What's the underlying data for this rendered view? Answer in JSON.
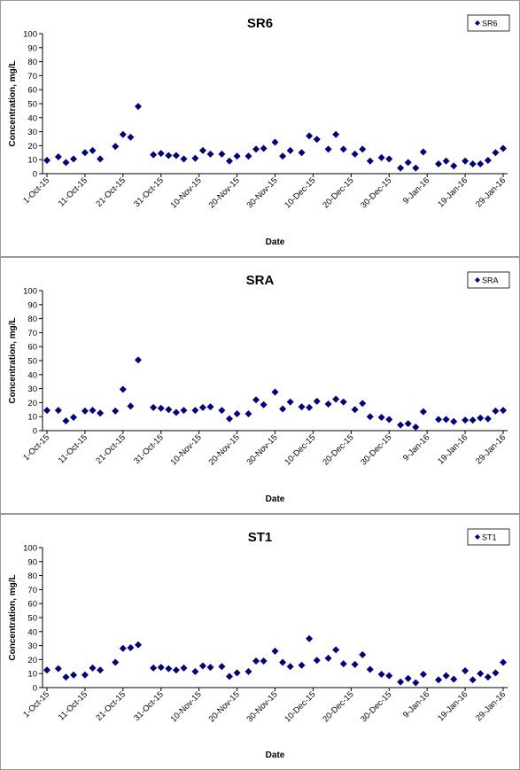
{
  "chart_data": [
    {
      "type": "scatter",
      "title": "SR6",
      "xlabel": "Date",
      "ylabel": "Concentration, mg/L",
      "ylim": [
        0,
        100
      ],
      "yticks": [
        0,
        10,
        20,
        30,
        40,
        50,
        60,
        70,
        80,
        90,
        100
      ],
      "xlim": [
        "2015-10-01",
        "2016-01-29"
      ],
      "xticks": [
        "1-Oct-15",
        "11-Oct-15",
        "21-Oct-15",
        "31-Oct-15",
        "10-Nov-15",
        "20-Nov-15",
        "30-Nov-15",
        "10-Dec-15",
        "20-Dec-15",
        "30-Dec-15",
        "9-Jan-16",
        "19-Jan-16",
        "29-Jan-16"
      ],
      "grid": false,
      "legend": "top-right",
      "marker_color": "#000080",
      "series": [
        {
          "name": "SR6",
          "points": [
            [
              "2015-10-01",
              9.5
            ],
            [
              "2015-10-04",
              12
            ],
            [
              "2015-10-06",
              8
            ],
            [
              "2015-10-08",
              10.5
            ],
            [
              "2015-10-11",
              15
            ],
            [
              "2015-10-13",
              16.5
            ],
            [
              "2015-10-15",
              10.5
            ],
            [
              "2015-10-19",
              19.5
            ],
            [
              "2015-10-21",
              28
            ],
            [
              "2015-10-23",
              26
            ],
            [
              "2015-10-25",
              48
            ],
            [
              "2015-10-29",
              13.5
            ],
            [
              "2015-10-31",
              14.5
            ],
            [
              "2015-11-02",
              13
            ],
            [
              "2015-11-04",
              13
            ],
            [
              "2015-11-06",
              10.5
            ],
            [
              "2015-11-09",
              11
            ],
            [
              "2015-11-11",
              16.5
            ],
            [
              "2015-11-13",
              14
            ],
            [
              "2015-11-16",
              14
            ],
            [
              "2015-11-18",
              9
            ],
            [
              "2015-11-20",
              12.5
            ],
            [
              "2015-11-23",
              12.5
            ],
            [
              "2015-11-25",
              17.5
            ],
            [
              "2015-11-27",
              18
            ],
            [
              "2015-11-30",
              22.5
            ],
            [
              "2015-12-02",
              12.5
            ],
            [
              "2015-12-04",
              16.5
            ],
            [
              "2015-12-07",
              15
            ],
            [
              "2015-12-09",
              27
            ],
            [
              "2015-12-11",
              24.5
            ],
            [
              "2015-12-14",
              17.5
            ],
            [
              "2015-12-16",
              28
            ],
            [
              "2015-12-18",
              17.5
            ],
            [
              "2015-12-21",
              14
            ],
            [
              "2015-12-23",
              17.5
            ],
            [
              "2015-12-25",
              9
            ],
            [
              "2015-12-28",
              11.5
            ],
            [
              "2015-12-30",
              10.5
            ],
            [
              "2016-01-02",
              4
            ],
            [
              "2016-01-04",
              8
            ],
            [
              "2016-01-06",
              4
            ],
            [
              "2016-01-08",
              15.5
            ],
            [
              "2016-01-12",
              7
            ],
            [
              "2016-01-14",
              9
            ],
            [
              "2016-01-16",
              5.5
            ],
            [
              "2016-01-19",
              9
            ],
            [
              "2016-01-21",
              7
            ],
            [
              "2016-01-23",
              7
            ],
            [
              "2016-01-25",
              9.5
            ],
            [
              "2016-01-27",
              15
            ],
            [
              "2016-01-29",
              18
            ]
          ]
        }
      ]
    },
    {
      "type": "scatter",
      "title": "SRA",
      "xlabel": "Date",
      "ylabel": "Concentration, mg/L",
      "ylim": [
        0,
        100
      ],
      "yticks": [
        0,
        10,
        20,
        30,
        40,
        50,
        60,
        70,
        80,
        90,
        100
      ],
      "xlim": [
        "2015-10-01",
        "2016-01-29"
      ],
      "xticks": [
        "1-Oct-15",
        "11-Oct-15",
        "21-Oct-15",
        "31-Oct-15",
        "10-Nov-15",
        "20-Nov-15",
        "30-Nov-15",
        "10-Dec-15",
        "20-Dec-15",
        "30-Dec-15",
        "9-Jan-16",
        "19-Jan-16",
        "29-Jan-16"
      ],
      "grid": false,
      "legend": "top-right",
      "marker_color": "#000080",
      "series": [
        {
          "name": "SRA",
          "points": [
            [
              "2015-10-01",
              14.5
            ],
            [
              "2015-10-04",
              14.5
            ],
            [
              "2015-10-06",
              7
            ],
            [
              "2015-10-08",
              9.5
            ],
            [
              "2015-10-11",
              14
            ],
            [
              "2015-10-13",
              14.5
            ],
            [
              "2015-10-15",
              12.5
            ],
            [
              "2015-10-19",
              14
            ],
            [
              "2015-10-21",
              29.5
            ],
            [
              "2015-10-23",
              17.5
            ],
            [
              "2015-10-25",
              50.5
            ],
            [
              "2015-10-29",
              16.5
            ],
            [
              "2015-10-31",
              16
            ],
            [
              "2015-11-02",
              15
            ],
            [
              "2015-11-04",
              13
            ],
            [
              "2015-11-06",
              14.5
            ],
            [
              "2015-11-09",
              14.5
            ],
            [
              "2015-11-11",
              16.5
            ],
            [
              "2015-11-13",
              17
            ],
            [
              "2015-11-16",
              14.5
            ],
            [
              "2015-11-18",
              8.5
            ],
            [
              "2015-11-20",
              12
            ],
            [
              "2015-11-23",
              12
            ],
            [
              "2015-11-25",
              22
            ],
            [
              "2015-11-27",
              18.5
            ],
            [
              "2015-11-30",
              27.5
            ],
            [
              "2015-12-02",
              15.5
            ],
            [
              "2015-12-04",
              20.5
            ],
            [
              "2015-12-07",
              17
            ],
            [
              "2015-12-09",
              16.5
            ],
            [
              "2015-12-11",
              21
            ],
            [
              "2015-12-14",
              19
            ],
            [
              "2015-12-16",
              22.5
            ],
            [
              "2015-12-18",
              20.5
            ],
            [
              "2015-12-21",
              15
            ],
            [
              "2015-12-23",
              19.5
            ],
            [
              "2015-12-25",
              10
            ],
            [
              "2015-12-28",
              9.5
            ],
            [
              "2015-12-30",
              8
            ],
            [
              "2016-01-02",
              4
            ],
            [
              "2016-01-04",
              5
            ],
            [
              "2016-01-06",
              2.5
            ],
            [
              "2016-01-08",
              13.5
            ],
            [
              "2016-01-12",
              8
            ],
            [
              "2016-01-14",
              8
            ],
            [
              "2016-01-16",
              6.5
            ],
            [
              "2016-01-19",
              7.5
            ],
            [
              "2016-01-21",
              7.5
            ],
            [
              "2016-01-23",
              9
            ],
            [
              "2016-01-25",
              8.5
            ],
            [
              "2016-01-27",
              14
            ],
            [
              "2016-01-29",
              14.5
            ]
          ]
        }
      ]
    },
    {
      "type": "scatter",
      "title": "ST1",
      "xlabel": "Date",
      "ylabel": "Concentration, mg/L",
      "ylim": [
        0,
        100
      ],
      "yticks": [
        0,
        10,
        20,
        30,
        40,
        50,
        60,
        70,
        80,
        90,
        100
      ],
      "xlim": [
        "2015-10-01",
        "2016-01-29"
      ],
      "xticks": [
        "1-Oct-15",
        "11-Oct-15",
        "21-Oct-15",
        "31-Oct-15",
        "10-Nov-15",
        "20-Nov-15",
        "30-Nov-15",
        "10-Dec-15",
        "20-Dec-15",
        "30-Dec-15",
        "9-Jan-16",
        "19-Jan-16",
        "29-Jan-16"
      ],
      "grid": false,
      "legend": "top-right",
      "marker_color": "#000080",
      "series": [
        {
          "name": "ST1",
          "points": [
            [
              "2015-10-01",
              12.5
            ],
            [
              "2015-10-04",
              13.5
            ],
            [
              "2015-10-06",
              7.5
            ],
            [
              "2015-10-08",
              9
            ],
            [
              "2015-10-11",
              9
            ],
            [
              "2015-10-13",
              14
            ],
            [
              "2015-10-15",
              12.5
            ],
            [
              "2015-10-19",
              18
            ],
            [
              "2015-10-21",
              28
            ],
            [
              "2015-10-23",
              28.5
            ],
            [
              "2015-10-25",
              30.5
            ],
            [
              "2015-10-29",
              14
            ],
            [
              "2015-10-31",
              14.5
            ],
            [
              "2015-11-02",
              13.5
            ],
            [
              "2015-11-04",
              12.5
            ],
            [
              "2015-11-06",
              14
            ],
            [
              "2015-11-09",
              11.5
            ],
            [
              "2015-11-11",
              15.5
            ],
            [
              "2015-11-13",
              14.5
            ],
            [
              "2015-11-16",
              15
            ],
            [
              "2015-11-18",
              8
            ],
            [
              "2015-11-20",
              10.5
            ],
            [
              "2015-11-23",
              11.5
            ],
            [
              "2015-11-25",
              19
            ],
            [
              "2015-11-27",
              19
            ],
            [
              "2015-11-30",
              26
            ],
            [
              "2015-12-02",
              18
            ],
            [
              "2015-12-04",
              15
            ],
            [
              "2015-12-07",
              16
            ],
            [
              "2015-12-09",
              35
            ],
            [
              "2015-12-11",
              19.5
            ],
            [
              "2015-12-14",
              21
            ],
            [
              "2015-12-16",
              27
            ],
            [
              "2015-12-18",
              17
            ],
            [
              "2015-12-21",
              16.5
            ],
            [
              "2015-12-23",
              23.5
            ],
            [
              "2015-12-25",
              13
            ],
            [
              "2015-12-28",
              9.5
            ],
            [
              "2015-12-30",
              8.5
            ],
            [
              "2016-01-02",
              4
            ],
            [
              "2016-01-04",
              6.5
            ],
            [
              "2016-01-06",
              3.5
            ],
            [
              "2016-01-08",
              9.5
            ],
            [
              "2016-01-12",
              5.5
            ],
            [
              "2016-01-14",
              8.5
            ],
            [
              "2016-01-16",
              6
            ],
            [
              "2016-01-19",
              12
            ],
            [
              "2016-01-21",
              5.5
            ],
            [
              "2016-01-23",
              10
            ],
            [
              "2016-01-25",
              7.5
            ],
            [
              "2016-01-27",
              10.5
            ],
            [
              "2016-01-29",
              18
            ]
          ]
        }
      ]
    }
  ]
}
